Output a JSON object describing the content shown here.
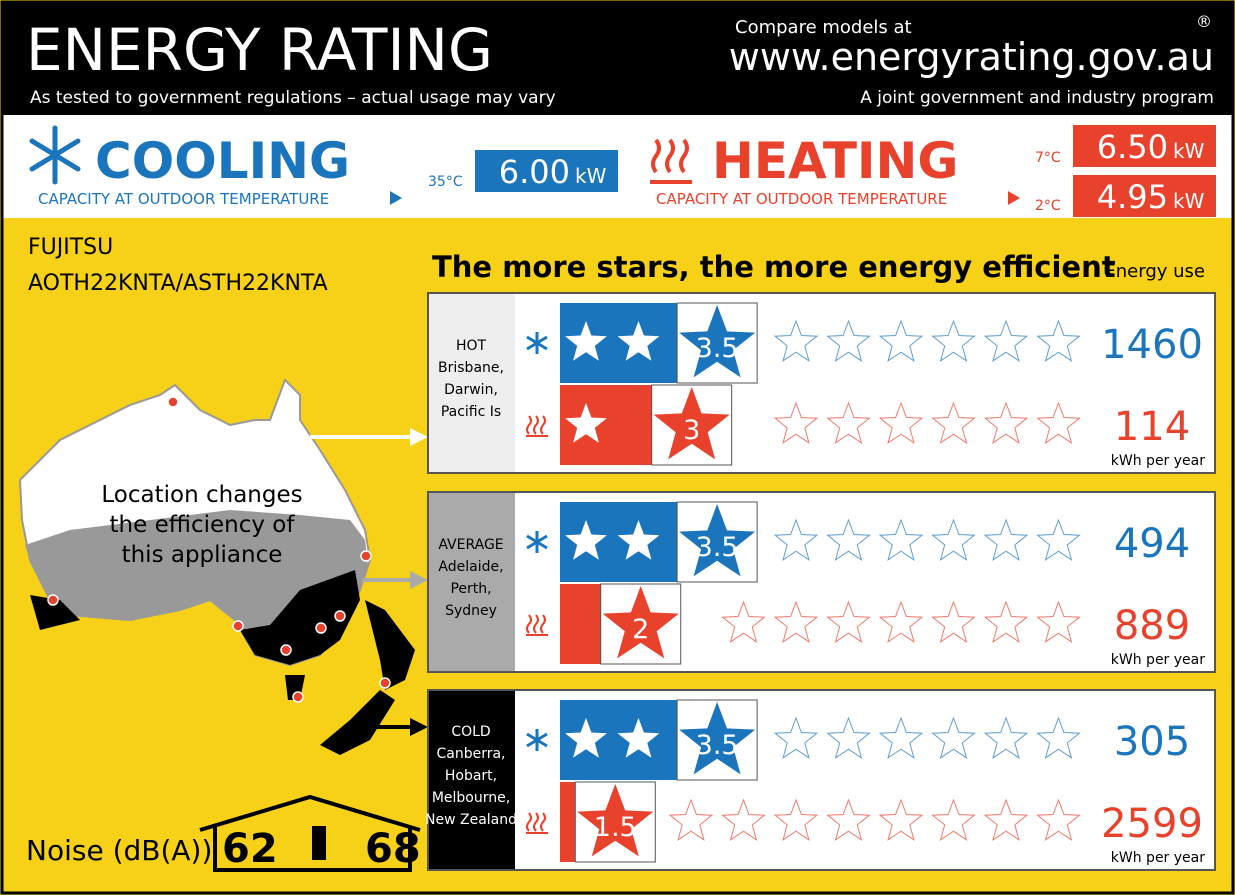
{
  "header": {
    "title": "ENERGY RATING",
    "subtitle": "As tested to government regulations – actual usage may vary",
    "compare": "Compare models at",
    "url": "www.energyrating.gov.au",
    "program": "A joint government and industry program",
    "registered": "®"
  },
  "capacity": {
    "cooling": {
      "title": "COOLING",
      "caption": "CAPACITY AT OUTDOOR TEMPERATURE",
      "rows": [
        {
          "temp": "35°C",
          "value": "6.00",
          "unit": "kW"
        }
      ]
    },
    "heating": {
      "title": "HEATING",
      "caption": "CAPACITY AT OUTDOOR TEMPERATURE",
      "rows": [
        {
          "temp": "7°C",
          "value": "6.50",
          "unit": "kW"
        },
        {
          "temp": "2°C",
          "value": "4.95",
          "unit": "kW"
        }
      ]
    }
  },
  "model": {
    "brand": "FUJITSU",
    "model": "AOTH22KNTA/ASTH22KNTA"
  },
  "headline": "The more stars, the more energy efficient",
  "energy_use_label": "Energy use",
  "map_caption": [
    "Location changes",
    "the efficiency of",
    "this appliance"
  ],
  "zones": [
    {
      "name": "HOT",
      "cities": [
        "Brisbane,",
        "Darwin,",
        "Pacific Is"
      ],
      "cooling": {
        "stars": 3.5,
        "energy": 1460
      },
      "heating": {
        "stars": 3,
        "energy": 114
      },
      "unit": "kWh per year"
    },
    {
      "name": "AVERAGE",
      "cities": [
        "Adelaide,",
        "Perth,",
        "Sydney"
      ],
      "cooling": {
        "stars": 3.5,
        "energy": 494
      },
      "heating": {
        "stars": 2,
        "energy": 889
      },
      "unit": "kWh per year"
    },
    {
      "name": "COLD",
      "cities": [
        "Canberra,",
        "Hobart,",
        "Melbourne,",
        "New Zealand"
      ],
      "cooling": {
        "stars": 3.5,
        "energy": 305
      },
      "heating": {
        "stars": 1.5,
        "energy": 2599
      },
      "unit": "kWh per year"
    }
  ],
  "noise": {
    "label": "Noise (dB(A))",
    "indoor": 62,
    "outdoor": 68
  }
}
